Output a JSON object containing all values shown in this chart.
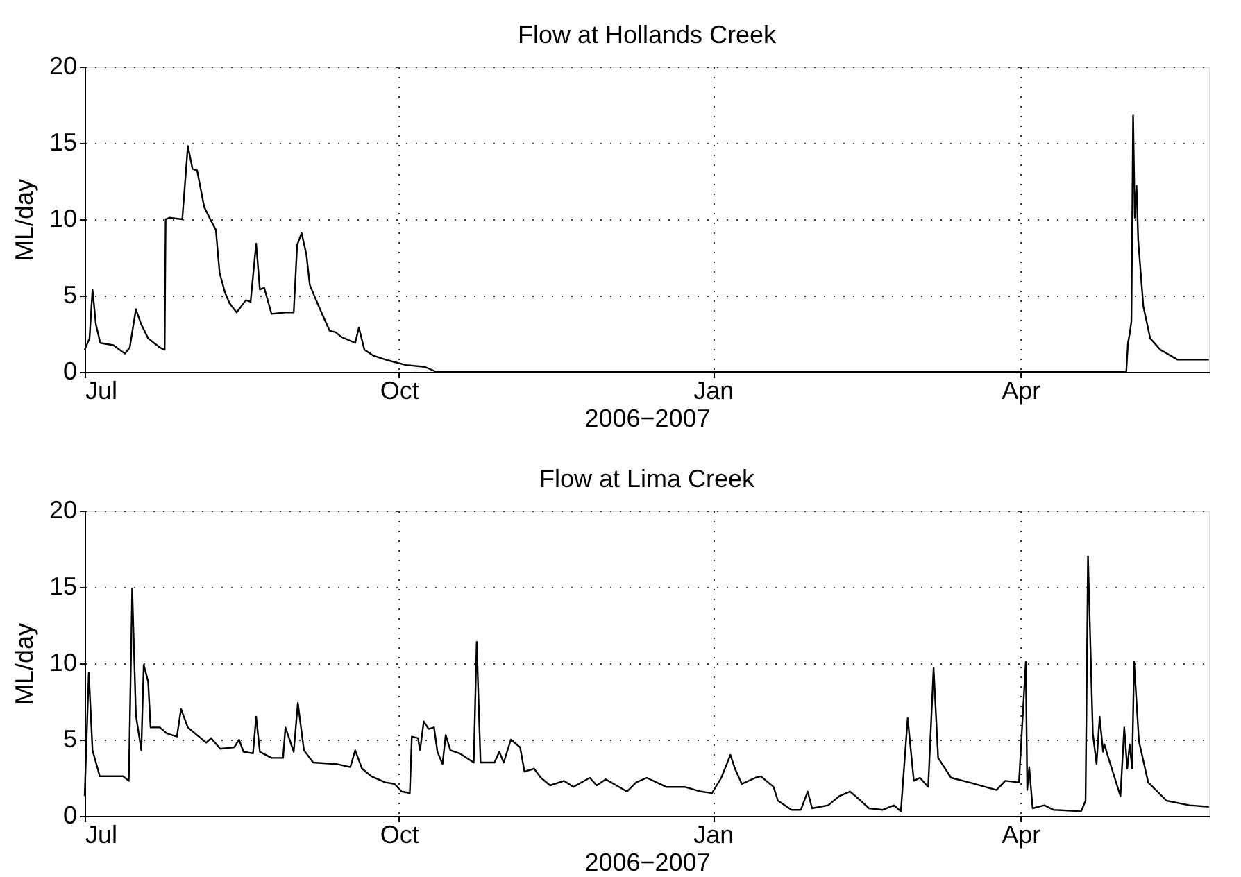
{
  "chart_data": [
    {
      "type": "line",
      "title": "Flow at Hollands Creek",
      "xlabel": "2006−2007",
      "ylabel": "ML/day",
      "xlim": [
        "2006-07-01",
        "2007-05-26T06:00"
      ],
      "xticks": [
        {
          "value": "2006-07-01",
          "label": "Jul"
        },
        {
          "value": "2006-10-01",
          "label": "Oct"
        },
        {
          "value": "2007-01-01",
          "label": "Jan"
        },
        {
          "value": "2007-04-01",
          "label": "Apr"
        }
      ],
      "ylim": [
        0,
        20
      ],
      "yticks": [
        0,
        5,
        10,
        15,
        20
      ],
      "grid": true,
      "legend": false,
      "marker": "none",
      "line_style": "solid",
      "series": [
        {
          "color": "#000000",
          "x": [
            "2006-07-01T00:00",
            "2006-07-02T10:00",
            "2006-07-03T07:00",
            "2006-07-04T07:00",
            "2006-07-05T14:00",
            "2006-07-09T10:00",
            "2006-07-12T19:00",
            "2006-07-14T05:00",
            "2006-07-16T00:00",
            "2006-07-17T14:00",
            "2006-07-19T14:00",
            "2006-07-23T00:00",
            "2006-07-24T10:00",
            "2006-07-24T17:00",
            "2006-07-25T19:00",
            "2006-07-29T14:00",
            "2006-07-31T05:00",
            "2006-08-01T14:00",
            "2006-08-02T22:00",
            "2006-08-05T00:00",
            "2006-08-07T00:00",
            "2006-08-08T10:00",
            "2006-08-09T12:00",
            "2006-08-11T02:00",
            "2006-08-12T10:00",
            "2006-08-14T12:00",
            "2006-08-17T05:00",
            "2006-08-18T14:00",
            "2006-08-20T05:00",
            "2006-08-21T07:00",
            "2006-08-22T14:00",
            "2006-08-24T17:00",
            "2006-08-28T19:00",
            "2006-08-31T05:00",
            "2006-09-01T05:00",
            "2006-09-02T12:00",
            "2006-09-03T22:00",
            "2006-09-04T22:00",
            "2006-09-06T14:00",
            "2006-09-08T17:00",
            "2006-09-10T17:00",
            "2006-09-12T12:00",
            "2006-09-14T02:00",
            "2006-09-18T05:00",
            "2006-09-19T07:00",
            "2006-09-20T22:00",
            "2006-09-23T14:00",
            "2006-09-27T17:00",
            "2006-10-03T02:00",
            "2006-10-08T14:00",
            "2006-10-12T00:00",
            "2007-05-02T00:00",
            "2007-05-02T12:00",
            "2007-05-03T00:00",
            "2007-05-03T12:00",
            "2007-05-04T00:00",
            "2007-05-04T12:00",
            "2007-05-05T00:00",
            "2007-05-05T12:00",
            "2007-05-07T00:00",
            "2007-05-09T00:00",
            "2007-05-12T00:00",
            "2007-05-17T00:00",
            "2007-05-24T00:00",
            "2007-05-26T05:00"
          ],
          "values": [
            1.45,
            2.2,
            5.4,
            3.1,
            1.9,
            1.75,
            1.2,
            1.6,
            4.1,
            3.1,
            2.2,
            1.6,
            1.45,
            10.0,
            10.1,
            10.0,
            14.8,
            13.3,
            13.2,
            10.8,
            9.9,
            9.3,
            6.5,
            5.2,
            4.5,
            3.9,
            4.7,
            4.6,
            8.4,
            5.4,
            5.5,
            3.8,
            3.9,
            3.9,
            8.3,
            9.1,
            7.7,
            5.7,
            4.8,
            3.7,
            2.7,
            2.6,
            2.3,
            1.9,
            2.9,
            1.45,
            1.06,
            0.76,
            0.45,
            0.33,
            0,
            0,
            1.9,
            2.5,
            3.3,
            16.8,
            10.1,
            12.2,
            8.6,
            4.3,
            2.2,
            1.45,
            0.8,
            0.8,
            0.8
          ]
        }
      ]
    },
    {
      "type": "line",
      "title": "Flow at Lima Creek",
      "xlabel": "2006−2007",
      "ylabel": "ML/day",
      "xlim": [
        "2006-07-01",
        "2007-05-26T06:00"
      ],
      "xticks": [
        {
          "value": "2006-07-01",
          "label": "Jul"
        },
        {
          "value": "2006-10-01",
          "label": "Oct"
        },
        {
          "value": "2007-01-01",
          "label": "Jan"
        },
        {
          "value": "2007-04-01",
          "label": "Apr"
        }
      ],
      "ylim": [
        0,
        20
      ],
      "yticks": [
        0,
        5,
        10,
        15,
        20
      ],
      "grid": true,
      "legend": false,
      "marker": "none",
      "line_style": "solid",
      "series": [
        {
          "color": "#000000",
          "x": [
            "2006-07-01T00:00",
            "2006-07-02T05:00",
            "2006-07-03T07:00",
            "2006-07-05T10:00",
            "2006-07-12T05:00",
            "2006-07-13T22:00",
            "2006-07-14T22:00",
            "2006-07-16T00:00",
            "2006-07-17T14:00",
            "2006-07-18T07:00",
            "2006-07-19T14:00",
            "2006-07-20T07:00",
            "2006-07-23T00:00",
            "2006-07-25T02:00",
            "2006-07-28T00:00",
            "2006-07-29T05:00",
            "2006-07-31T05:00",
            "2006-08-05T14:00",
            "2006-08-07T00:00",
            "2006-08-09T17:00",
            "2006-08-13T19:00",
            "2006-08-15T05:00",
            "2006-08-16T12:00",
            "2006-08-19T07:00",
            "2006-08-20T05:00",
            "2006-08-21T07:00",
            "2006-08-24T17:00",
            "2006-08-28T02:00",
            "2006-08-28T19:00",
            "2006-08-31T05:00",
            "2006-09-01T10:00",
            "2006-09-03T05:00",
            "2006-09-05T22:00",
            "2006-09-12T17:00",
            "2006-09-16T19:00",
            "2006-09-18T05:00",
            "2006-09-20T05:00",
            "2006-09-22T22:00",
            "2006-09-27T00:00",
            "2006-09-29T17:00",
            "2006-10-01T19:00",
            "2006-10-04T05:00",
            "2006-10-04T19:00",
            "2006-10-06T14:00",
            "2006-10-07T05:00",
            "2006-10-08T07:00",
            "2006-10-09T17:00",
            "2006-10-11T07:00",
            "2006-10-12T07:00",
            "2006-10-13T19:00",
            "2006-10-14T17:00",
            "2006-10-16T02:00",
            "2006-10-18T19:00",
            "2006-10-22T22:00",
            "2006-10-23T19:00",
            "2006-10-24T22:00",
            "2006-10-29T00:00",
            "2006-10-30T10:00",
            "2006-10-31T17:00",
            "2006-11-02T19:00",
            "2006-11-05T12:00",
            "2006-11-06T19:00",
            "2006-11-09T14:00",
            "2006-11-11T14:00",
            "2006-11-14T07:00",
            "2006-11-18T10:00",
            "2006-11-21T02:00",
            "2006-11-25T22:00",
            "2006-11-27T22:00",
            "2006-11-30T14:00",
            "2006-12-06T19:00",
            "2006-12-09T12:00",
            "2006-12-12T14:00",
            "2006-12-18T07:00",
            "2006-12-23T17:00",
            "2006-12-28T10:00",
            "2006-12-31T17:00",
            "2007-01-03T10:00",
            "2007-01-06T02:00",
            "2007-01-07T10:00",
            "2007-01-09T10:00",
            "2007-01-13T10:00",
            "2007-01-15T00:00",
            "2007-01-18T17:00",
            "2007-01-20T00:00",
            "2007-01-24T00:00",
            "2007-01-26T17:00",
            "2007-01-28T17:00",
            "2007-01-30T00:00",
            "2007-02-03T17:00",
            "2007-02-07T00:00",
            "2007-02-10T02:00",
            "2007-02-11T17:00",
            "2007-02-15T17:00",
            "2007-02-19T17:00",
            "2007-02-23T00:00",
            "2007-02-25T00:00",
            "2007-02-27T00:00",
            "2007-02-28T19:00",
            "2007-03-02T14:00",
            "2007-03-05T00:00",
            "2007-03-06T14:00",
            "2007-03-07T22:00",
            "2007-03-11T17:00",
            "2007-03-17T00:00",
            "2007-03-25T00:00",
            "2007-03-27T14:00",
            "2007-03-31T14:00",
            "2007-04-02T14:00",
            "2007-04-03T00:00",
            "2007-04-03T14:00",
            "2007-04-04T14:00",
            "2007-04-08T00:00",
            "2007-04-10T17:00",
            "2007-04-18T19:00",
            "2007-04-20T02:00",
            "2007-04-20T19:00",
            "2007-04-22T05:00",
            "2007-04-23T07:00",
            "2007-04-24T05:00",
            "2007-04-25T05:00",
            "2007-04-25T14:00",
            "2007-04-26T12:00",
            "2007-04-30T07:00",
            "2007-05-01T10:00",
            "2007-05-02T07:00",
            "2007-05-03T00:00",
            "2007-05-03T17:00",
            "2007-05-04T07:00",
            "2007-05-05T17:00",
            "2007-05-08T10:00",
            "2007-05-13T19:00",
            "2007-05-20T12:00",
            "2007-05-26T05:00"
          ],
          "values": [
            1.3,
            9.4,
            4.3,
            2.6,
            2.6,
            2.3,
            14.9,
            6.6,
            4.3,
            9.9,
            8.8,
            5.8,
            5.8,
            5.4,
            5.2,
            7.0,
            5.8,
            4.8,
            5.1,
            4.4,
            4.5,
            5.0,
            4.2,
            4.1,
            6.5,
            4.2,
            3.8,
            3.8,
            5.8,
            4.2,
            7.4,
            4.3,
            3.5,
            3.4,
            3.2,
            4.3,
            3.1,
            2.6,
            2.2,
            2.1,
            1.6,
            1.5,
            5.2,
            5.1,
            4.3,
            6.2,
            5.7,
            5.8,
            4.2,
            3.4,
            5.3,
            4.3,
            4.1,
            3.5,
            11.4,
            3.5,
            3.5,
            4.2,
            3.5,
            5.0,
            4.5,
            2.9,
            3.1,
            2.5,
            2.0,
            2.3,
            1.9,
            2.5,
            2.0,
            2.4,
            1.6,
            2.2,
            2.5,
            1.9,
            1.9,
            1.6,
            1.5,
            2.5,
            4.0,
            3.1,
            2.1,
            2.5,
            2.6,
            1.9,
            1.0,
            0.4,
            0.4,
            1.6,
            0.5,
            0.7,
            1.3,
            1.6,
            1.3,
            0.5,
            0.4,
            0.7,
            0.3,
            6.4,
            2.3,
            2.5,
            1.9,
            9.7,
            3.8,
            2.5,
            2.2,
            1.7,
            2.3,
            2.2,
            10.1,
            1.7,
            3.2,
            0.5,
            0.7,
            0.4,
            0.3,
            1.0,
            17.0,
            5.4,
            3.4,
            6.5,
            4.2,
            4.7,
            4.0,
            1.3,
            5.8,
            3.1,
            4.7,
            3.1,
            10.1,
            4.9,
            2.2,
            1.0,
            0.7,
            0.6
          ]
        }
      ]
    }
  ]
}
